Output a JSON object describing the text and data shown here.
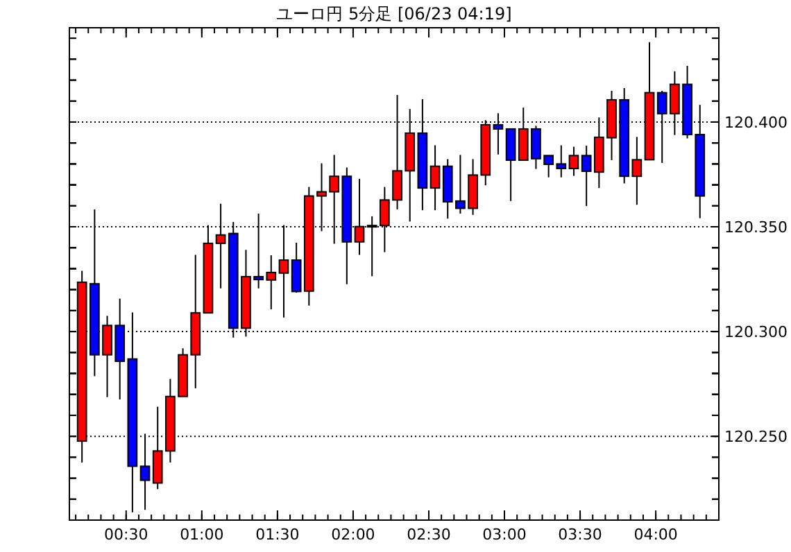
{
  "chart_data": {
    "type": "candlestick",
    "title": "ユーロ円 5分足 [06/23 04:19]",
    "x": [
      0.2083,
      0.2917,
      0.375,
      0.4583,
      0.5417,
      0.625,
      0.7083,
      0.7917,
      0.875,
      0.9583,
      1.0417,
      1.125,
      1.2083,
      1.2917,
      1.375,
      1.4583,
      1.5417,
      1.625,
      1.7083,
      1.7917,
      1.875,
      1.9583,
      2.0417,
      2.125,
      2.2083,
      2.2917,
      2.375,
      2.4583,
      2.5417,
      2.625,
      2.7083,
      2.7917,
      2.875,
      2.9583,
      3.0417,
      3.125,
      3.2083,
      3.2917,
      3.375,
      3.4583,
      3.5417,
      3.625,
      3.7083,
      3.7917,
      3.875,
      3.9583,
      4.0417,
      4.125,
      4.2083,
      4.2917
    ],
    "ohlc": [
      [
        120.2477,
        120.329,
        120.2375,
        120.3235
      ],
      [
        120.3228,
        120.3583,
        120.2787,
        120.2889
      ],
      [
        120.2889,
        120.3075,
        120.2687,
        120.3029
      ],
      [
        120.3029,
        120.3157,
        120.2676,
        120.2858
      ],
      [
        120.2869,
        120.3091,
        120.2137,
        120.2357
      ],
      [
        120.2357,
        120.2512,
        120.2149,
        120.229
      ],
      [
        120.2277,
        120.2641,
        120.2248,
        120.243
      ],
      [
        120.243,
        120.2774,
        120.2375,
        120.269
      ],
      [
        120.269,
        120.292,
        120.269,
        120.2889
      ],
      [
        120.2889,
        120.3366,
        120.2729,
        120.3089
      ],
      [
        120.3089,
        120.3508,
        120.3089,
        120.3421
      ],
      [
        120.3421,
        120.361,
        120.3206,
        120.3461
      ],
      [
        120.3468,
        120.3523,
        120.2971,
        120.3016
      ],
      [
        120.3016,
        120.339,
        120.2976,
        120.3262
      ],
      [
        120.3262,
        120.3563,
        120.3206,
        120.3248
      ],
      [
        120.3246,
        120.3364,
        120.3106,
        120.3282
      ],
      [
        120.3279,
        120.3508,
        120.3067,
        120.3341
      ],
      [
        120.3341,
        120.3424,
        120.3186,
        120.3191
      ],
      [
        120.3193,
        120.369,
        120.3124,
        120.3647
      ],
      [
        120.3647,
        120.3803,
        120.3479,
        120.3667
      ],
      [
        120.3667,
        120.3843,
        120.3419,
        120.3741
      ],
      [
        120.3741,
        120.3783,
        120.3226,
        120.3428
      ],
      [
        120.3428,
        120.3729,
        120.3366,
        120.3501
      ],
      [
        120.3501,
        120.355,
        120.3264,
        120.3506
      ],
      [
        120.3506,
        120.369,
        120.3379,
        120.3628
      ],
      [
        120.3628,
        120.4129,
        120.3583,
        120.3767
      ],
      [
        120.3767,
        120.4062,
        120.3525,
        120.3947
      ],
      [
        120.3947,
        120.4109,
        120.3579,
        120.3685
      ],
      [
        120.3685,
        120.3889,
        120.3579,
        120.3789
      ],
      [
        120.3789,
        120.3823,
        120.3539,
        120.3619
      ],
      [
        120.3623,
        120.3843,
        120.3563,
        120.3588
      ],
      [
        120.3588,
        120.3823,
        120.3557,
        120.3747
      ],
      [
        120.3747,
        120.4009,
        120.3698,
        120.3987
      ],
      [
        120.3987,
        120.4042,
        120.3845,
        120.3967
      ],
      [
        120.3967,
        120.3967,
        120.3623,
        120.3818
      ],
      [
        120.3818,
        120.4069,
        120.3818,
        120.3967
      ],
      [
        120.3967,
        120.3982,
        120.3776,
        120.3825
      ],
      [
        120.384,
        120.384,
        120.3736,
        120.3798
      ],
      [
        120.38,
        120.3889,
        120.3736,
        120.3778
      ],
      [
        120.3778,
        120.3882,
        120.3743,
        120.384
      ],
      [
        120.384,
        120.3887,
        120.3599,
        120.3765
      ],
      [
        120.3761,
        120.4022,
        120.3685,
        120.3927
      ],
      [
        120.3925,
        120.4149,
        120.3818,
        120.4106
      ],
      [
        120.4106,
        120.4162,
        120.3707,
        120.3741
      ],
      [
        120.3741,
        120.3929,
        120.3605,
        120.382
      ],
      [
        120.382,
        120.4381,
        120.382,
        120.414
      ],
      [
        120.414,
        120.4149,
        120.3805,
        120.404
      ],
      [
        120.404,
        120.4242,
        120.3938,
        120.418
      ],
      [
        120.418,
        120.4268,
        120.3922,
        120.394
      ],
      [
        120.394,
        120.4082,
        120.3541,
        120.3647
      ]
    ],
    "colors": [
      "#ff0000",
      "#0000ff",
      "#ff0000",
      "#0000ff",
      "#0000ff",
      "#0000ff",
      "#ff0000",
      "#ff0000",
      "#ff0000",
      "#ff0000",
      "#ff0000",
      "#ff0000",
      "#0000ff",
      "#ff0000",
      "#0000ff",
      "#ff0000",
      "#ff0000",
      "#0000ff",
      "#ff0000",
      "#ff0000",
      "#ff0000",
      "#0000ff",
      "#ff0000",
      "#ff0000",
      "#ff0000",
      "#ff0000",
      "#ff0000",
      "#0000ff",
      "#ff0000",
      "#0000ff",
      "#0000ff",
      "#ff0000",
      "#ff0000",
      "#0000ff",
      "#0000ff",
      "#ff0000",
      "#0000ff",
      "#0000ff",
      "#0000ff",
      "#ff0000",
      "#0000ff",
      "#ff0000",
      "#ff0000",
      "#0000ff",
      "#ff0000",
      "#ff0000",
      "#0000ff",
      "#ff0000",
      "#0000ff",
      "#0000ff"
    ],
    "xlim": [
      0.125,
      4.4167
    ],
    "xticks": [
      {
        "value": 0.5,
        "label": "00:30"
      },
      {
        "value": 1,
        "label": "01:00"
      },
      {
        "value": 1.5,
        "label": "01:30"
      },
      {
        "value": 2,
        "label": "02:00"
      },
      {
        "value": 2.5,
        "label": "02:30"
      },
      {
        "value": 3,
        "label": "03:00"
      },
      {
        "value": 3.5,
        "label": "03:30"
      },
      {
        "value": 4,
        "label": "04:00"
      }
    ],
    "ylim": [
      120.21,
      120.445
    ],
    "yticks": [
      {
        "value": 120.25,
        "label": "120.250"
      },
      {
        "value": 120.3,
        "label": "120.300"
      },
      {
        "value": 120.35,
        "label": "120.350"
      },
      {
        "value": 120.4,
        "label": "120.400"
      }
    ],
    "grid": "y"
  }
}
